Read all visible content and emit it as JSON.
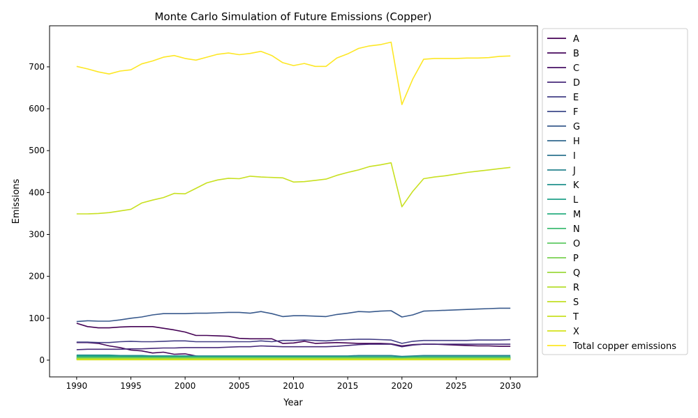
{
  "chart_data": {
    "type": "line",
    "title": "Monte Carlo Simulation of Future Emissions (Copper)",
    "xlabel": "Year",
    "ylabel": "Emissions",
    "xlim": [
      1987.5,
      2032.5
    ],
    "ylim": [
      -40,
      798
    ],
    "xticks": [
      1990,
      1995,
      2000,
      2005,
      2010,
      2015,
      2020,
      2025,
      2030
    ],
    "yticks": [
      0,
      100,
      200,
      300,
      400,
      500,
      600,
      700
    ],
    "grid": false,
    "legend_placement": "outside-right",
    "x": [
      1990,
      1991,
      1992,
      1993,
      1994,
      1995,
      1996,
      1997,
      1998,
      1999,
      2000,
      2001,
      2002,
      2003,
      2004,
      2005,
      2006,
      2007,
      2008,
      2009,
      2010,
      2011,
      2012,
      2013,
      2014,
      2015,
      2016,
      2017,
      2018,
      2019,
      2020,
      2021,
      2022,
      2023,
      2024,
      2025,
      2026,
      2027,
      2028,
      2029,
      2030
    ],
    "series": [
      {
        "name": "A",
        "color": "#440154",
        "values": [
          88,
          80,
          77,
          77,
          79,
          80,
          80,
          80,
          76,
          72,
          67,
          59,
          59,
          58,
          57,
          52,
          51,
          51,
          51,
          40,
          41,
          45,
          40,
          41,
          42,
          41,
          40,
          40,
          40,
          39,
          34,
          37,
          38,
          38,
          37,
          36,
          35,
          34,
          34,
          33,
          33
        ]
      },
      {
        "name": "B",
        "color": "#46085c",
        "values": [
          42,
          42,
          40,
          34,
          30,
          24,
          22,
          17,
          19,
          14,
          15,
          10,
          7,
          6,
          6,
          6,
          6,
          6,
          6,
          6,
          6,
          6,
          6,
          6,
          6,
          6,
          6,
          6,
          6,
          6,
          5,
          5,
          5,
          5,
          5,
          5,
          5,
          5,
          5,
          5,
          5
        ]
      },
      {
        "name": "C",
        "color": "#471164",
        "values": [
          4,
          4,
          4,
          4,
          4,
          4,
          4,
          4,
          4,
          4,
          4,
          4,
          4,
          4,
          4,
          4,
          4,
          4,
          4,
          4,
          4,
          4,
          4,
          4,
          4,
          4,
          4,
          4,
          4,
          4,
          3,
          4,
          4,
          4,
          4,
          4,
          4,
          4,
          4,
          4,
          4
        ]
      },
      {
        "name": "D",
        "color": "#472a7a",
        "values": [
          25,
          26,
          26,
          26,
          26,
          27,
          27,
          28,
          29,
          29,
          30,
          30,
          30,
          30,
          31,
          32,
          32,
          34,
          33,
          32,
          32,
          32,
          32,
          32,
          33,
          35,
          37,
          38,
          38,
          38,
          32,
          36,
          38,
          38,
          38,
          38,
          38,
          38,
          38,
          38,
          38
        ]
      },
      {
        "name": "E",
        "color": "#433e85",
        "values": [
          43,
          43,
          42,
          42,
          44,
          45,
          44,
          44,
          45,
          46,
          46,
          44,
          44,
          44,
          44,
          44,
          44,
          46,
          44,
          47,
          47,
          48,
          47,
          46,
          48,
          49,
          50,
          50,
          49,
          48,
          40,
          45,
          47,
          47,
          47,
          47,
          47,
          48,
          48,
          48,
          49
        ]
      },
      {
        "name": "F",
        "color": "#3e4989",
        "values": [
          3,
          3,
          3,
          3,
          3,
          3,
          3,
          3,
          3,
          3,
          3,
          3,
          3,
          3,
          3,
          3,
          3,
          3,
          3,
          3,
          3,
          3,
          3,
          3,
          3,
          3,
          3,
          3,
          3,
          3,
          3,
          3,
          3,
          3,
          3,
          3,
          3,
          3,
          3,
          3,
          3
        ]
      },
      {
        "name": "G",
        "color": "#38598c",
        "values": [
          92,
          94,
          93,
          93,
          96,
          100,
          103,
          108,
          111,
          111,
          111,
          112,
          112,
          113,
          114,
          114,
          112,
          116,
          111,
          104,
          106,
          106,
          105,
          104,
          109,
          112,
          116,
          115,
          117,
          118,
          103,
          108,
          117,
          118,
          119,
          120,
          121,
          122,
          123,
          124,
          124
        ]
      },
      {
        "name": "H",
        "color": "#31688e",
        "values": [
          2,
          2,
          2,
          2,
          2,
          2,
          2,
          2,
          2,
          2,
          2,
          2,
          2,
          2,
          2,
          2,
          2,
          2,
          2,
          2,
          2,
          2,
          2,
          2,
          2,
          2,
          2,
          2,
          2,
          2,
          2,
          2,
          2,
          2,
          2,
          2,
          2,
          2,
          2,
          2,
          2
        ]
      },
      {
        "name": "I",
        "color": "#2c728e",
        "values": [
          6,
          6,
          6,
          6,
          6,
          6,
          6,
          6,
          6,
          6,
          6,
          6,
          6,
          6,
          6,
          6,
          6,
          6,
          6,
          6,
          6,
          6,
          6,
          6,
          6,
          6,
          6,
          6,
          6,
          6,
          5,
          6,
          6,
          6,
          6,
          6,
          6,
          6,
          6,
          6,
          6
        ]
      },
      {
        "name": "J",
        "color": "#26828e",
        "values": [
          10,
          10,
          10,
          10,
          10,
          10,
          10,
          10,
          10,
          10,
          10,
          10,
          10,
          10,
          10,
          10,
          10,
          10,
          10,
          10,
          10,
          10,
          10,
          10,
          10,
          10,
          11,
          11,
          11,
          11,
          9,
          10,
          11,
          11,
          11,
          11,
          11,
          11,
          11,
          11,
          11
        ]
      },
      {
        "name": "K",
        "color": "#21918c",
        "values": [
          12,
          12,
          12,
          12,
          11,
          11,
          11,
          10,
          10,
          10,
          10,
          9,
          9,
          9,
          9,
          9,
          9,
          8,
          8,
          8,
          8,
          8,
          8,
          8,
          8,
          8,
          8,
          8,
          8,
          8,
          7,
          7,
          8,
          8,
          8,
          8,
          8,
          8,
          8,
          8,
          8
        ]
      },
      {
        "name": "L",
        "color": "#1fa088",
        "values": [
          10,
          10,
          11,
          11,
          8,
          8,
          8,
          8,
          8,
          9,
          9,
          8,
          8,
          8,
          8,
          8,
          8,
          8,
          8,
          8,
          8,
          8,
          8,
          8,
          8,
          8,
          8,
          8,
          8,
          8,
          7,
          8,
          8,
          8,
          8,
          8,
          8,
          8,
          8,
          8,
          8
        ]
      },
      {
        "name": "M",
        "color": "#28ae80",
        "values": [
          8,
          8,
          8,
          8,
          8,
          7,
          7,
          7,
          7,
          7,
          7,
          7,
          7,
          7,
          7,
          7,
          7,
          7,
          7,
          7,
          7,
          7,
          7,
          7,
          7,
          7,
          7,
          7,
          7,
          7,
          6,
          7,
          7,
          7,
          7,
          7,
          7,
          7,
          7,
          7,
          7
        ]
      },
      {
        "name": "N",
        "color": "#3fbc73",
        "values": [
          5,
          5,
          5,
          5,
          5,
          5,
          5,
          5,
          5,
          5,
          5,
          5,
          5,
          5,
          5,
          5,
          5,
          5,
          5,
          5,
          5,
          5,
          5,
          5,
          5,
          5,
          5,
          5,
          5,
          5,
          4,
          5,
          5,
          5,
          5,
          5,
          5,
          5,
          5,
          5,
          5
        ]
      },
      {
        "name": "O",
        "color": "#5ec962",
        "values": [
          6,
          6,
          6,
          6,
          6,
          6,
          6,
          6,
          6,
          6,
          6,
          6,
          6,
          6,
          6,
          6,
          6,
          6,
          6,
          6,
          6,
          6,
          6,
          6,
          6,
          6,
          6,
          6,
          6,
          6,
          5,
          6,
          6,
          6,
          6,
          6,
          6,
          6,
          6,
          6,
          6
        ]
      },
      {
        "name": "P",
        "color": "#7ad151",
        "values": [
          3,
          3,
          3,
          3,
          3,
          3,
          3,
          3,
          3,
          3,
          3,
          3,
          3,
          3,
          3,
          3,
          3,
          3,
          3,
          3,
          3,
          3,
          3,
          3,
          3,
          3,
          3,
          3,
          3,
          3,
          3,
          3,
          3,
          3,
          3,
          3,
          3,
          3,
          3,
          3,
          3
        ]
      },
      {
        "name": "Q",
        "color": "#9bd93c",
        "values": [
          4,
          4,
          4,
          4,
          4,
          4,
          4,
          4,
          4,
          4,
          4,
          4,
          4,
          4,
          4,
          4,
          4,
          4,
          4,
          4,
          4,
          4,
          4,
          4,
          4,
          4,
          4,
          4,
          4,
          4,
          3,
          4,
          4,
          4,
          4,
          4,
          4,
          4,
          4,
          4,
          4
        ]
      },
      {
        "name": "R",
        "color": "#b5de2b",
        "values": [
          2,
          2,
          2,
          2,
          2,
          2,
          2,
          2,
          2,
          2,
          2,
          2,
          2,
          2,
          2,
          2,
          2,
          2,
          2,
          2,
          2,
          2,
          2,
          2,
          2,
          2,
          2,
          2,
          2,
          2,
          2,
          2,
          2,
          2,
          2,
          2,
          2,
          2,
          2,
          2,
          2
        ]
      },
      {
        "name": "S",
        "color": "#c2df23",
        "values": [
          1,
          1,
          1,
          1,
          1,
          1,
          1,
          1,
          1,
          1,
          1,
          1,
          1,
          1,
          1,
          1,
          1,
          1,
          1,
          1,
          1,
          1,
          1,
          1,
          1,
          1,
          1,
          1,
          1,
          1,
          1,
          1,
          1,
          1,
          1,
          1,
          1,
          1,
          1,
          1,
          1
        ]
      },
      {
        "name": "T",
        "color": "#c8e020",
        "values": [
          349,
          349,
          350,
          352,
          356,
          360,
          375,
          382,
          388,
          398,
          397,
          410,
          423,
          430,
          434,
          433,
          439,
          437,
          436,
          435,
          425,
          426,
          429,
          432,
          441,
          448,
          454,
          462,
          466,
          471,
          366,
          403,
          433,
          437,
          440,
          444,
          448,
          451,
          454,
          457,
          460
        ]
      },
      {
        "name": "X",
        "color": "#d5e21a",
        "values": [
          1,
          1,
          1,
          1,
          1,
          1,
          1,
          1,
          1,
          1,
          1,
          1,
          1,
          1,
          1,
          1,
          1,
          1,
          1,
          1,
          1,
          1,
          1,
          1,
          1,
          1,
          1,
          1,
          1,
          1,
          1,
          1,
          1,
          1,
          1,
          1,
          1,
          1,
          1,
          1,
          1
        ]
      },
      {
        "name": "Total copper emissions",
        "color": "#fde725",
        "values": [
          701,
          695,
          688,
          683,
          690,
          693,
          707,
          714,
          723,
          727,
          720,
          716,
          723,
          730,
          733,
          729,
          732,
          737,
          727,
          710,
          703,
          708,
          701,
          701,
          721,
          731,
          744,
          750,
          753,
          759,
          610,
          671,
          718,
          720,
          720,
          720,
          721,
          721,
          722,
          725,
          726
        ]
      }
    ]
  }
}
